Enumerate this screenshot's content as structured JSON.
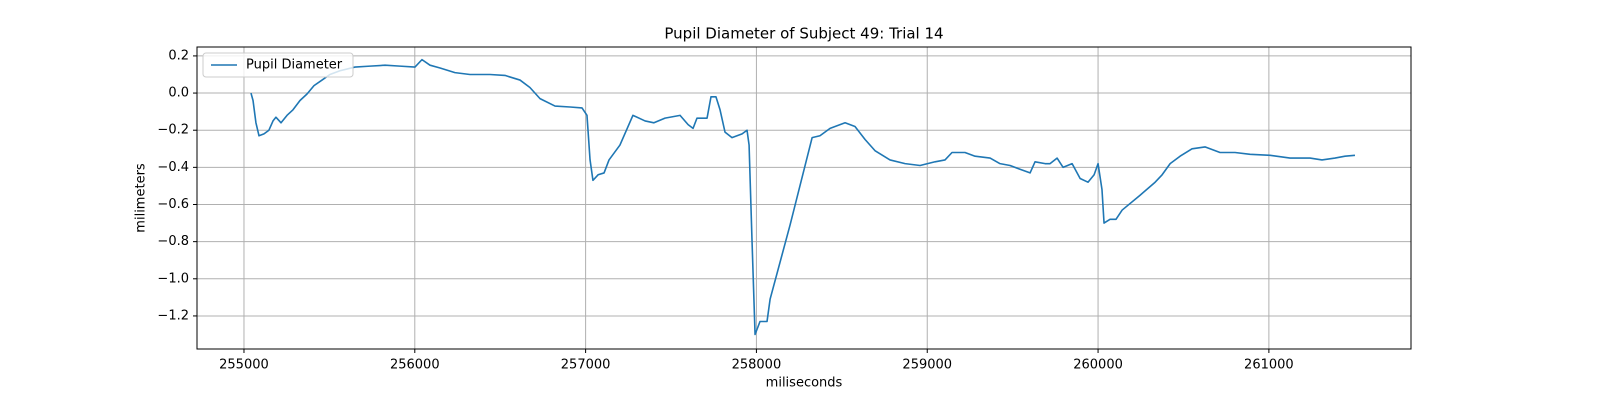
{
  "chart_data": {
    "type": "line",
    "title": "Pupil Diameter of Subject 49: Trial 14",
    "x_label": "miliseconds",
    "y_label": "milimeters",
    "x": [
      255041,
      255053,
      255070,
      255088,
      255117,
      255146,
      255170,
      255187,
      255217,
      255252,
      255287,
      255328,
      255369,
      255410,
      255457,
      255503,
      255562,
      255650,
      255738,
      255826,
      255913,
      256001,
      256042,
      256089,
      256148,
      256235,
      256323,
      256440,
      256528,
      256616,
      256674,
      256733,
      256821,
      256909,
      256979,
      257008,
      257026,
      257043,
      257073,
      257108,
      257137,
      257201,
      257277,
      257348,
      257400,
      257465,
      257553,
      257600,
      257629,
      257652,
      257711,
      257734,
      257763,
      257787,
      257816,
      257857,
      257916,
      257945,
      257957,
      257974,
      257992,
      258021,
      258062,
      258080,
      258197,
      258326,
      258372,
      258431,
      258519,
      258577,
      258636,
      258694,
      258782,
      258870,
      258958,
      259046,
      259104,
      259145,
      259221,
      259280,
      259368,
      259426,
      259485,
      259543,
      259602,
      259631,
      259690,
      259719,
      259760,
      259795,
      259848,
      259895,
      259941,
      259977,
      260000,
      260023,
      260035,
      260070,
      260105,
      260141,
      260246,
      260334,
      260375,
      260422,
      260480,
      260550,
      260626,
      260714,
      260802,
      260890,
      261007,
      261124,
      261241,
      261311,
      261387,
      261446,
      261504
    ],
    "series": [
      {
        "name": "Pupil Diameter",
        "color": "#1f77b4",
        "values": [
          0.0,
          -0.04,
          -0.16,
          -0.23,
          -0.22,
          -0.2,
          -0.15,
          -0.13,
          -0.16,
          -0.12,
          -0.09,
          -0.04,
          -0.005,
          0.04,
          0.07,
          0.1,
          0.12,
          0.14,
          0.145,
          0.15,
          0.145,
          0.14,
          0.18,
          0.15,
          0.135,
          0.11,
          0.1,
          0.1,
          0.095,
          0.07,
          0.03,
          -0.03,
          -0.07,
          -0.075,
          -0.08,
          -0.12,
          -0.36,
          -0.47,
          -0.44,
          -0.43,
          -0.36,
          -0.28,
          -0.12,
          -0.15,
          -0.16,
          -0.135,
          -0.12,
          -0.17,
          -0.19,
          -0.135,
          -0.135,
          -0.02,
          -0.02,
          -0.09,
          -0.21,
          -0.24,
          -0.22,
          -0.2,
          -0.28,
          -0.79,
          -1.3,
          -1.23,
          -1.23,
          -1.11,
          -0.71,
          -0.24,
          -0.23,
          -0.19,
          -0.16,
          -0.18,
          -0.25,
          -0.31,
          -0.36,
          -0.38,
          -0.39,
          -0.37,
          -0.36,
          -0.32,
          -0.32,
          -0.34,
          -0.35,
          -0.38,
          -0.39,
          -0.41,
          -0.43,
          -0.37,
          -0.38,
          -0.38,
          -0.35,
          -0.4,
          -0.38,
          -0.46,
          -0.48,
          -0.44,
          -0.38,
          -0.52,
          -0.7,
          -0.68,
          -0.68,
          -0.63,
          -0.55,
          -0.48,
          -0.44,
          -0.38,
          -0.34,
          -0.3,
          -0.29,
          -0.32,
          -0.32,
          -0.33,
          -0.335,
          -0.35,
          -0.35,
          -0.36,
          -0.35,
          -0.34,
          -0.335
        ]
      }
    ],
    "xlim": [
      254725,
      261832
    ],
    "xticks": [
      255000,
      256000,
      257000,
      258000,
      259000,
      260000,
      261000
    ],
    "ylim": [
      -1.378,
      0.248
    ],
    "yticks": [
      {
        "value": -1.2,
        "label": "−1.2"
      },
      {
        "value": -1.0,
        "label": "−1.0"
      },
      {
        "value": -0.8,
        "label": "−0.8"
      },
      {
        "value": -0.6,
        "label": "−0.6"
      },
      {
        "value": -0.4,
        "label": "−0.4"
      },
      {
        "value": -0.2,
        "label": "−0.2"
      },
      {
        "value": 0.0,
        "label": "0.0"
      },
      0.2
    ],
    "grid": true,
    "legend": "upper-left"
  }
}
